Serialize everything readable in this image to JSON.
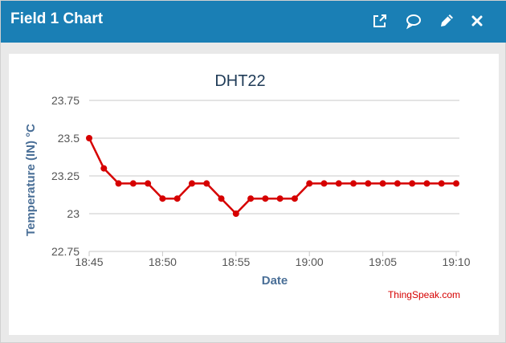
{
  "window": {
    "title": "Field 1 Chart",
    "icons": [
      "external-link-icon",
      "comment-icon",
      "pencil-icon",
      "close-icon"
    ]
  },
  "colors": {
    "header": "#1a7fb5",
    "series": "#d60000",
    "axis_text": "#4a6f97",
    "title": "#1f3b57"
  },
  "chart_data": {
    "type": "line",
    "title": "DHT22",
    "xlabel": "Date",
    "ylabel": "Temperature (IN) °C",
    "credit": "ThingSpeak.com",
    "x_tick_labels": [
      "18:45",
      "18:50",
      "18:55",
      "19:00",
      "19:05",
      "19:10"
    ],
    "y_tick_labels": [
      "22.75",
      "23",
      "23.25",
      "23.5",
      "23.75"
    ],
    "ylim": [
      22.75,
      23.75
    ],
    "xlim": [
      "18:45",
      "19:10"
    ],
    "grid": true,
    "series": [
      {
        "x": [
          "18:45",
          "18:46",
          "18:47",
          "18:48",
          "18:49",
          "18:50",
          "18:51",
          "18:52",
          "18:53",
          "18:54",
          "18:55",
          "18:56",
          "18:57",
          "18:58",
          "18:59",
          "19:00",
          "19:01",
          "19:02",
          "19:03",
          "19:04",
          "19:05",
          "19:06",
          "19:07",
          "19:08",
          "19:09",
          "19:10"
        ],
        "values": [
          23.5,
          23.3,
          23.2,
          23.2,
          23.2,
          23.1,
          23.1,
          23.2,
          23.2,
          23.1,
          23.0,
          23.1,
          23.1,
          23.1,
          23.1,
          23.2,
          23.2,
          23.2,
          23.2,
          23.2,
          23.2,
          23.2,
          23.2,
          23.2,
          23.2,
          23.2
        ]
      }
    ]
  }
}
